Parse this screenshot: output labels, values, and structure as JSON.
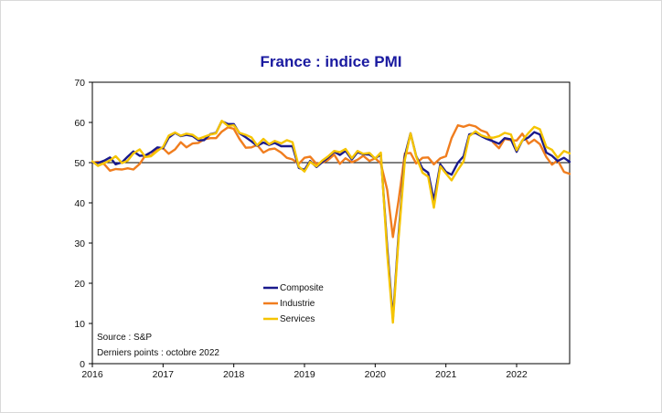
{
  "chart_data": {
    "type": "line",
    "title": "France : indice PMI",
    "xlabel": "",
    "ylabel": "",
    "xlim": [
      2016.0,
      2022.75
    ],
    "ylim": [
      0,
      70
    ],
    "yticks": [
      0,
      10,
      20,
      30,
      40,
      50,
      60,
      70
    ],
    "xticks": [
      "2016",
      "2017",
      "2018",
      "2019",
      "2020",
      "2021",
      "2022"
    ],
    "reference_line": 50,
    "legend": {
      "placement": "center-bottom"
    },
    "source": "Source : S&P",
    "last_points": "Derniers points : octobre 2022",
    "colors": {
      "Composite": "#1a1a8c",
      "Industrie": "#f07d1e",
      "Services": "#f5c400",
      "axis": "#000000",
      "title": "#1a1aa0"
    },
    "series": [
      {
        "name": "Composite",
        "x": [
          2016.0,
          2016.08,
          2016.17,
          2016.25,
          2016.33,
          2016.42,
          2016.5,
          2016.58,
          2016.67,
          2016.75,
          2016.83,
          2016.92,
          2017.0,
          2017.08,
          2017.17,
          2017.25,
          2017.33,
          2017.42,
          2017.5,
          2017.58,
          2017.67,
          2017.75,
          2017.83,
          2017.92,
          2018.0,
          2018.08,
          2018.17,
          2018.25,
          2018.33,
          2018.42,
          2018.5,
          2018.58,
          2018.67,
          2018.75,
          2018.83,
          2018.92,
          2019.0,
          2019.08,
          2019.17,
          2019.25,
          2019.33,
          2019.42,
          2019.5,
          2019.58,
          2019.67,
          2019.75,
          2019.83,
          2019.92,
          2020.0,
          2020.08,
          2020.17,
          2020.25,
          2020.33,
          2020.42,
          2020.5,
          2020.58,
          2020.67,
          2020.75,
          2020.83,
          2020.92,
          2021.0,
          2021.08,
          2021.17,
          2021.25,
          2021.33,
          2021.42,
          2021.5,
          2021.58,
          2021.67,
          2021.75,
          2021.83,
          2021.92,
          2022.0,
          2022.08,
          2022.17,
          2022.25,
          2022.33,
          2022.42,
          2022.5,
          2022.58,
          2022.67,
          2022.75
        ],
        "values": [
          50.0,
          49.9,
          50.5,
          51.3,
          49.6,
          50.1,
          51.5,
          52.8,
          51.7,
          51.8,
          52.6,
          53.8,
          53.6,
          56.2,
          57.4,
          56.6,
          56.9,
          56.6,
          55.6,
          55.6,
          57.1,
          57.4,
          60.3,
          59.6,
          59.6,
          57.3,
          56.3,
          55.3,
          54.2,
          55.0,
          54.4,
          54.9,
          54.1,
          54.1,
          54.1,
          48.7,
          48.2,
          50.4,
          48.9,
          50.1,
          51.2,
          52.7,
          51.9,
          52.9,
          50.8,
          52.6,
          52.1,
          52.0,
          51.1,
          52.0,
          28.9,
          11.1,
          32.1,
          51.7,
          57.3,
          51.6,
          48.5,
          47.5,
          40.6,
          49.6,
          47.7,
          47.0,
          50.0,
          51.6,
          57.0,
          57.4,
          56.6,
          55.9,
          55.3,
          54.7,
          56.1,
          55.8,
          52.7,
          55.5,
          56.3,
          57.6,
          57.0,
          52.5,
          51.7,
          50.4,
          51.2,
          50.2
        ]
      },
      {
        "name": "Industrie",
        "x": [
          2016.0,
          2016.08,
          2016.17,
          2016.25,
          2016.33,
          2016.42,
          2016.5,
          2016.58,
          2016.67,
          2016.75,
          2016.83,
          2016.92,
          2017.0,
          2017.08,
          2017.17,
          2017.25,
          2017.33,
          2017.42,
          2017.5,
          2017.58,
          2017.67,
          2017.75,
          2017.83,
          2017.92,
          2018.0,
          2018.08,
          2018.17,
          2018.25,
          2018.33,
          2018.42,
          2018.5,
          2018.58,
          2018.67,
          2018.75,
          2018.83,
          2018.92,
          2019.0,
          2019.08,
          2019.17,
          2019.25,
          2019.33,
          2019.42,
          2019.5,
          2019.58,
          2019.67,
          2019.75,
          2019.83,
          2019.92,
          2020.0,
          2020.08,
          2020.17,
          2020.25,
          2020.33,
          2020.42,
          2020.5,
          2020.58,
          2020.67,
          2020.75,
          2020.83,
          2020.92,
          2021.0,
          2021.08,
          2021.17,
          2021.25,
          2021.33,
          2021.42,
          2021.5,
          2021.58,
          2021.67,
          2021.75,
          2021.83,
          2021.92,
          2022.0,
          2022.08,
          2022.17,
          2022.25,
          2022.33,
          2022.42,
          2022.5,
          2022.58,
          2022.67,
          2022.75
        ],
        "values": [
          50.0,
          50.2,
          49.6,
          48.0,
          48.4,
          48.3,
          48.6,
          48.3,
          49.7,
          51.8,
          51.7,
          53.5,
          53.6,
          52.2,
          53.3,
          55.1,
          53.8,
          54.8,
          54.9,
          55.8,
          56.1,
          56.1,
          57.7,
          58.8,
          58.4,
          55.9,
          53.7,
          53.8,
          54.4,
          52.5,
          53.3,
          53.5,
          52.5,
          51.2,
          50.8,
          49.7,
          51.2,
          51.5,
          49.7,
          50.0,
          50.6,
          52.0,
          49.7,
          51.1,
          50.1,
          50.7,
          51.7,
          50.4,
          51.1,
          49.8,
          43.2,
          31.5,
          40.6,
          52.3,
          52.4,
          49.8,
          51.2,
          51.3,
          49.6,
          51.1,
          51.6,
          56.1,
          59.3,
          58.9,
          59.4,
          59.0,
          58.0,
          57.5,
          55.0,
          53.6,
          55.9,
          55.6,
          55.5,
          57.2,
          54.7,
          55.7,
          54.6,
          51.4,
          49.5,
          50.6,
          47.7,
          47.2
        ]
      },
      {
        "name": "Services",
        "x": [
          2016.0,
          2016.08,
          2016.17,
          2016.25,
          2016.33,
          2016.42,
          2016.5,
          2016.58,
          2016.67,
          2016.75,
          2016.83,
          2016.92,
          2017.0,
          2017.08,
          2017.17,
          2017.25,
          2017.33,
          2017.42,
          2017.5,
          2017.58,
          2017.67,
          2017.75,
          2017.83,
          2017.92,
          2018.0,
          2018.08,
          2018.17,
          2018.25,
          2018.33,
          2018.42,
          2018.5,
          2018.58,
          2018.67,
          2018.75,
          2018.83,
          2018.92,
          2019.0,
          2019.08,
          2019.17,
          2019.25,
          2019.33,
          2019.42,
          2019.5,
          2019.58,
          2019.67,
          2019.75,
          2019.83,
          2019.92,
          2020.0,
          2020.08,
          2020.17,
          2020.25,
          2020.33,
          2020.42,
          2020.5,
          2020.58,
          2020.67,
          2020.75,
          2020.83,
          2020.92,
          2021.0,
          2021.08,
          2021.17,
          2021.25,
          2021.33,
          2021.42,
          2021.5,
          2021.58,
          2021.67,
          2021.75,
          2021.83,
          2021.92,
          2022.0,
          2022.08,
          2022.17,
          2022.25,
          2022.33,
          2022.42,
          2022.5,
          2022.58,
          2022.67,
          2022.75
        ],
        "values": [
          50.3,
          49.2,
          49.9,
          50.6,
          51.6,
          49.9,
          50.5,
          52.3,
          53.3,
          51.4,
          51.6,
          52.9,
          53.9,
          56.7,
          57.5,
          56.7,
          57.2,
          56.9,
          55.9,
          56.4,
          57.0,
          57.3,
          60.4,
          59.1,
          59.3,
          57.4,
          56.9,
          56.3,
          54.3,
          55.9,
          54.6,
          55.4,
          54.8,
          55.6,
          55.1,
          49.0,
          47.8,
          50.2,
          49.1,
          50.5,
          51.5,
          52.9,
          52.6,
          53.4,
          51.1,
          52.9,
          52.2,
          52.4,
          51.0,
          52.5,
          27.4,
          10.2,
          31.1,
          50.7,
          57.3,
          51.5,
          47.5,
          46.5,
          38.8,
          49.1,
          47.3,
          45.6,
          48.2,
          50.3,
          56.6,
          57.8,
          56.8,
          56.3,
          56.2,
          56.6,
          57.4,
          57.0,
          53.1,
          55.5,
          57.4,
          58.9,
          58.3,
          53.9,
          53.2,
          51.2,
          52.9,
          52.3
        ]
      }
    ]
  }
}
